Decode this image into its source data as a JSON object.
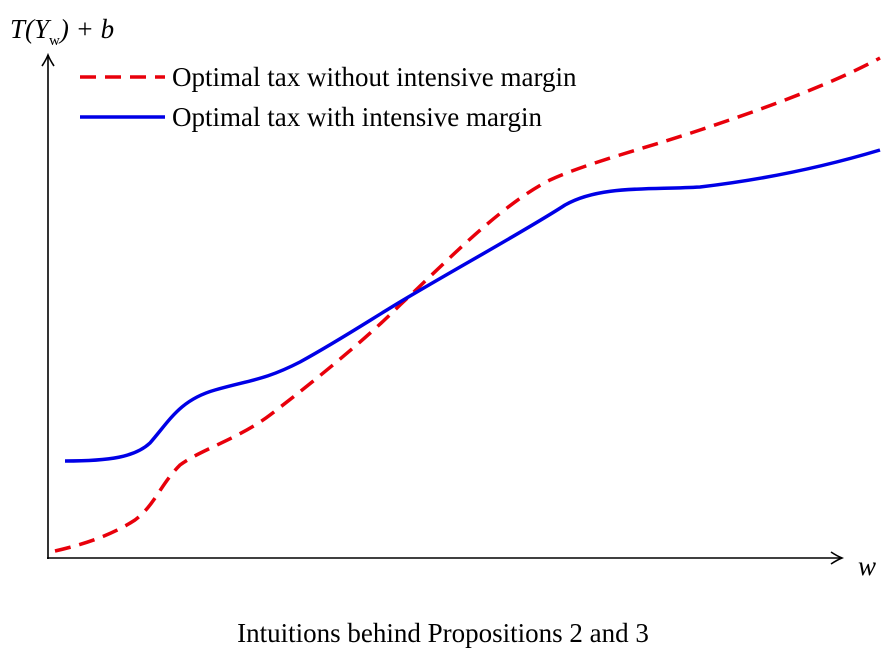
{
  "axes": {
    "y_label": {
      "before": "T(Y",
      "subscript": "w",
      "after": ") + b"
    },
    "x_label": "w"
  },
  "legend": [
    "Optimal tax without intensive margin",
    "Optimal tax with intensive margin"
  ],
  "caption": "Intuitions behind Propositions 2 and 3"
}
